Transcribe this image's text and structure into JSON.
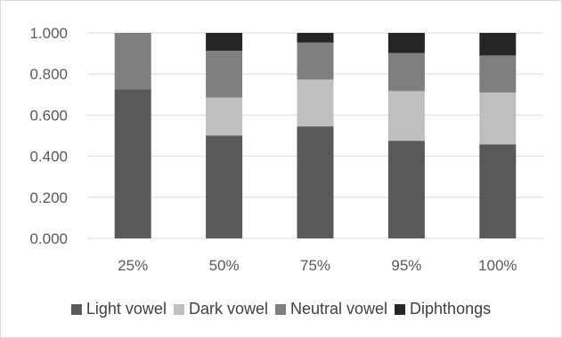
{
  "chart_data": {
    "type": "bar",
    "stacked": true,
    "categories": [
      "25%",
      "50%",
      "75%",
      "95%",
      "100%"
    ],
    "series": [
      {
        "name": "Light vowel",
        "color": "#595959",
        "values": [
          0.725,
          0.5,
          0.545,
          0.475,
          0.458
        ]
      },
      {
        "name": "Dark vowel",
        "color": "#bfbfbf",
        "values": [
          0.0,
          0.185,
          0.228,
          0.242,
          0.252
        ]
      },
      {
        "name": "Neutral vowel",
        "color": "#7f7f7f",
        "values": [
          0.275,
          0.228,
          0.18,
          0.185,
          0.18
        ]
      },
      {
        "name": "Diphthongs",
        "color": "#262626",
        "values": [
          0.0,
          0.087,
          0.047,
          0.098,
          0.11
        ]
      }
    ],
    "ylim": [
      0,
      1
    ],
    "yticks": [
      "0.000",
      "0.200",
      "0.400",
      "0.600",
      "0.800",
      "1.000"
    ],
    "ytick_values": [
      0,
      0.2,
      0.4,
      0.6,
      0.8,
      1.0
    ],
    "grid": true,
    "legend_position": "bottom"
  }
}
